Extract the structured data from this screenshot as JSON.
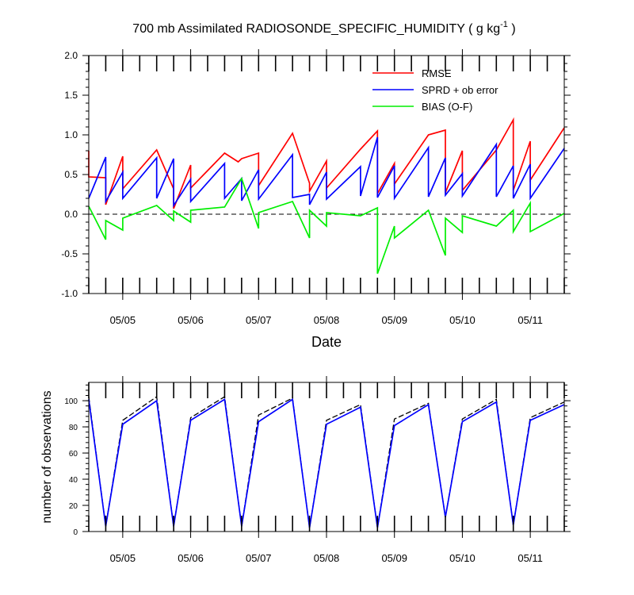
{
  "chart_data": [
    {
      "type": "line",
      "title_main": "700 mb Assimilated RADIOSONDE_SPECIFIC_HUMIDITY ( g kg",
      "title_sup": "-1",
      "title_end": " )",
      "xlabel": "Date",
      "ylabel": "",
      "xlim": [
        0,
        7.0
      ],
      "ylim": [
        -1.0,
        2.0
      ],
      "yticks": [
        "2.0",
        "1.5",
        "1.0",
        "0.5",
        "0.0",
        "-0.5",
        "-1.0"
      ],
      "ytick_values": [
        2.0,
        1.5,
        1.0,
        0.5,
        0.0,
        -0.5,
        -1.0
      ],
      "xticks": [
        "05/05",
        "05/06",
        "05/07",
        "05/08",
        "05/09",
        "05/10",
        "05/11"
      ],
      "xtick_values": [
        0.5,
        1.5,
        2.5,
        3.5,
        4.5,
        5.5,
        6.5
      ],
      "zero_line": "dashed",
      "legend_position": "top-right",
      "series": [
        {
          "name": "RMSE",
          "color": "#ff0000",
          "x": [
            0,
            0,
            0.25,
            0.25,
            0.5,
            0.5,
            1.0,
            1.25,
            1.25,
            1.5,
            1.5,
            2.0,
            2.2,
            2.2,
            2.25,
            2.5,
            2.5,
            3.0,
            3.25,
            3.25,
            3.5,
            3.5,
            4.0,
            4.25,
            4.25,
            4.5,
            4.5,
            5.0,
            5.25,
            5.25,
            5.5,
            5.5,
            6.0,
            6.25,
            6.25,
            6.5,
            6.5,
            7.0
          ],
          "y": [
            0.8,
            0.47,
            0.46,
            0.12,
            0.73,
            0.32,
            0.81,
            0.32,
            0.07,
            0.62,
            0.33,
            0.77,
            0.66,
            0.66,
            0.7,
            0.77,
            0.36,
            1.02,
            0.39,
            0.29,
            0.67,
            0.33,
            0.82,
            1.05,
            0.26,
            0.64,
            0.38,
            1.0,
            1.06,
            0.27,
            0.8,
            0.3,
            0.81,
            1.19,
            0.3,
            0.92,
            0.43,
            1.09
          ]
        },
        {
          "name": "SPRD + ob error",
          "color": "#0000ff",
          "x": [
            0,
            0.25,
            0.25,
            0.5,
            0.5,
            1.0,
            1.0,
            1.25,
            1.25,
            1.5,
            1.5,
            2.0,
            2.0,
            2.25,
            2.25,
            2.5,
            2.5,
            3.0,
            3.0,
            3.25,
            3.25,
            3.5,
            3.5,
            4.0,
            4.0,
            4.25,
            4.25,
            4.5,
            4.5,
            5.0,
            5.0,
            5.25,
            5.25,
            5.5,
            5.5,
            6.0,
            6.0,
            6.25,
            6.25,
            6.5,
            6.5,
            7.0
          ],
          "y": [
            0.2,
            0.72,
            0.16,
            0.53,
            0.2,
            0.71,
            0.2,
            0.7,
            0.11,
            0.44,
            0.16,
            0.64,
            0.2,
            0.45,
            0.17,
            0.56,
            0.19,
            0.75,
            0.21,
            0.25,
            0.12,
            0.53,
            0.19,
            0.6,
            0.23,
            0.97,
            0.21,
            0.61,
            0.2,
            0.84,
            0.22,
            0.71,
            0.24,
            0.51,
            0.23,
            0.88,
            0.22,
            0.61,
            0.2,
            0.63,
            0.2,
            0.83
          ]
        },
        {
          "name": "BIAS (O-F)",
          "color": "#00ee00",
          "x": [
            0,
            0.25,
            0.25,
            0.5,
            0.5,
            1.0,
            1.25,
            1.25,
            1.5,
            1.5,
            2.0,
            2.25,
            2.5,
            2.5,
            3.0,
            3.25,
            3.25,
            3.5,
            3.5,
            4.0,
            4.25,
            4.25,
            4.5,
            4.5,
            5.0,
            5.25,
            5.25,
            5.5,
            5.5,
            6.0,
            6.25,
            6.25,
            6.5,
            6.5,
            7.0
          ],
          "y": [
            0.1,
            -0.32,
            -0.08,
            -0.2,
            -0.05,
            0.11,
            -0.08,
            0.04,
            -0.1,
            0.05,
            0.09,
            0.45,
            -0.18,
            0.02,
            0.16,
            -0.3,
            0.05,
            -0.15,
            0.02,
            -0.02,
            0.08,
            -0.75,
            -0.15,
            -0.3,
            0.05,
            -0.52,
            -0.05,
            -0.23,
            -0.02,
            -0.15,
            0.05,
            -0.22,
            0.14,
            -0.22,
            0.01
          ]
        }
      ]
    },
    {
      "type": "line",
      "xlabel": "",
      "ylabel": "number of observations",
      "xlim": [
        0,
        7.0
      ],
      "ylim": [
        0,
        114
      ],
      "yticks": [
        "100",
        "80",
        "60",
        "40",
        "20",
        "0"
      ],
      "ytick_values": [
        100,
        80,
        60,
        40,
        20,
        0
      ],
      "xticks": [
        "05/05",
        "05/06",
        "05/07",
        "05/08",
        "05/09",
        "05/10",
        "05/11"
      ],
      "xtick_values": [
        0.5,
        1.5,
        2.5,
        3.5,
        4.5,
        5.5,
        6.5
      ],
      "series": [
        {
          "color": "#000000",
          "style": "dashed",
          "x": [
            0,
            0.25,
            0.5,
            1.0,
            1.25,
            1.5,
            2.0,
            2.25,
            2.5,
            3.0,
            3.25,
            3.5,
            4.0,
            4.25,
            4.5,
            5.0,
            5.25,
            5.5,
            6.0,
            6.25,
            6.5,
            7.0
          ],
          "y": [
            103,
            4,
            85,
            103,
            4,
            87,
            103,
            4,
            89,
            102,
            3,
            85,
            97,
            3,
            86,
            98,
            11,
            86,
            101,
            5,
            87,
            99
          ]
        },
        {
          "color": "#0000ff",
          "style": "solid",
          "x": [
            0,
            0.25,
            0.5,
            1.0,
            1.25,
            1.5,
            2.0,
            2.25,
            2.5,
            3.0,
            3.25,
            3.5,
            4.0,
            4.25,
            4.5,
            5.0,
            5.25,
            5.5,
            6.0,
            6.25,
            6.5,
            7.0
          ],
          "y": [
            101,
            4,
            82,
            100,
            4,
            85,
            101,
            4,
            84,
            101,
            3,
            82,
            95,
            3,
            81,
            97,
            11,
            84,
            99,
            5,
            85,
            97
          ]
        }
      ]
    }
  ]
}
